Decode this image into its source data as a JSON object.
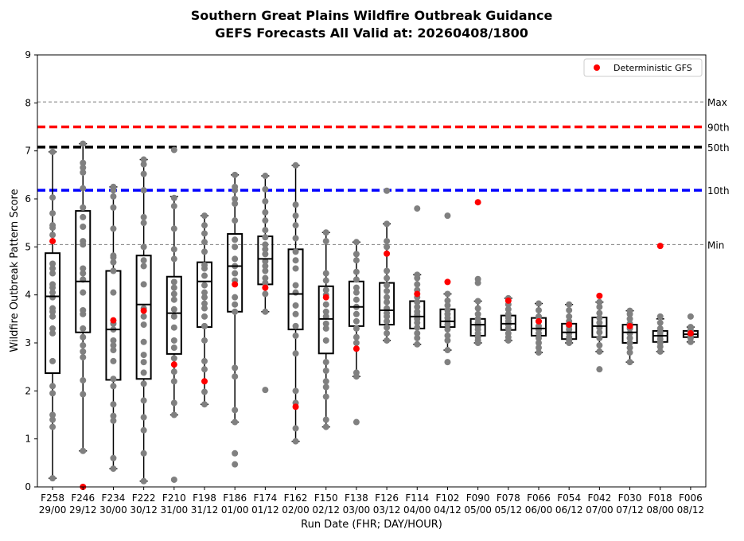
{
  "chart_data": {
    "type": "boxplot",
    "title_line1": "Southern Great Plains Wildfire Outbreak Guidance",
    "title_line2": "GEFS Forecasts All Valid at: 20260408/1800",
    "xlabel": "Run Date (FHR; DAY/HOUR)",
    "ylabel": "Wildfire Outbreak Pattern Score",
    "ylim": [
      0,
      9
    ],
    "yticks": [
      0,
      1,
      2,
      3,
      4,
      5,
      6,
      7,
      8,
      9
    ],
    "legend": {
      "label": "Deterministic GFS",
      "color": "#ff0000",
      "placement": "top-right"
    },
    "reference_lines": [
      {
        "label": "Max",
        "value": 8.02,
        "color": "#808080",
        "style": "dashed-thin"
      },
      {
        "label": "90th",
        "value": 7.5,
        "color": "#ff0000",
        "style": "dashed-thick"
      },
      {
        "label": "50th",
        "value": 7.08,
        "color": "#000000",
        "style": "dashed-thick"
      },
      {
        "label": "10th",
        "value": 6.18,
        "color": "#0000ff",
        "style": "dashed-thick"
      },
      {
        "label": "Min",
        "value": 5.05,
        "color": "#808080",
        "style": "dashed-thin"
      }
    ],
    "runs": [
      {
        "fhr": "F258",
        "date": "29/00",
        "whislo": 0.18,
        "q1": 2.37,
        "med": 3.97,
        "q3": 4.87,
        "whishi": 6.98,
        "gfs": 5.12,
        "members": [
          0.18,
          1.25,
          1.4,
          1.5,
          1.95,
          2.1,
          2.62,
          3.2,
          3.3,
          3.55,
          3.65,
          3.72,
          3.95,
          4.05,
          4.15,
          4.22,
          4.45,
          4.55,
          4.65,
          5.25,
          5.4,
          5.45,
          5.7,
          6.03,
          6.98
        ]
      },
      {
        "fhr": "F246",
        "date": "29/12",
        "whislo": 0.75,
        "q1": 3.22,
        "med": 4.28,
        "q3": 5.75,
        "whishi": 7.15,
        "gfs": 0.0,
        "members": [
          0.75,
          1.93,
          2.22,
          2.7,
          2.82,
          2.95,
          3.12,
          3.3,
          3.6,
          3.68,
          4.05,
          4.32,
          4.45,
          4.55,
          5.05,
          5.12,
          5.42,
          5.62,
          5.82,
          6.22,
          6.55,
          6.65,
          6.75,
          7.15
        ]
      },
      {
        "fhr": "F234",
        "date": "30/00",
        "whislo": 0.38,
        "q1": 2.23,
        "med": 3.28,
        "q3": 4.5,
        "whishi": 6.25,
        "gfs": 3.47,
        "members": [
          0.38,
          0.6,
          1.38,
          1.48,
          1.72,
          2.1,
          2.25,
          2.62,
          2.85,
          2.95,
          3.05,
          3.28,
          3.4,
          4.05,
          4.5,
          4.68,
          4.78,
          4.82,
          5.38,
          5.82,
          6.05,
          6.18,
          6.25
        ]
      },
      {
        "fhr": "F222",
        "date": "30/12",
        "whislo": 0.12,
        "q1": 2.25,
        "med": 3.8,
        "q3": 4.82,
        "whishi": 6.82,
        "gfs": 3.67,
        "members": [
          0.12,
          0.7,
          1.18,
          1.45,
          1.8,
          2.15,
          2.38,
          2.6,
          2.75,
          3.02,
          3.38,
          3.55,
          3.72,
          4.22,
          4.6,
          4.72,
          5.0,
          5.5,
          5.62,
          6.18,
          6.52,
          6.72,
          6.82
        ]
      },
      {
        "fhr": "F210",
        "date": "31/00",
        "whislo": 1.5,
        "q1": 2.77,
        "med": 3.62,
        "q3": 4.38,
        "whishi": 6.05,
        "gfs": 2.55,
        "members": [
          0.15,
          1.5,
          1.75,
          2.2,
          2.4,
          2.68,
          2.9,
          3.05,
          3.32,
          3.55,
          3.7,
          3.9,
          4.02,
          4.15,
          4.27,
          4.75,
          4.95,
          5.38,
          5.85,
          6.02,
          7.02
        ]
      },
      {
        "fhr": "F198",
        "date": "31/12",
        "whislo": 1.72,
        "q1": 3.33,
        "med": 4.28,
        "q3": 4.68,
        "whishi": 5.65,
        "gfs": 2.2,
        "members": [
          1.72,
          1.98,
          2.45,
          2.62,
          3.05,
          3.35,
          3.55,
          3.72,
          3.82,
          3.95,
          4.05,
          4.2,
          4.4,
          4.55,
          4.62,
          4.9,
          5.1,
          5.28,
          5.45,
          5.65
        ]
      },
      {
        "fhr": "F186",
        "date": "01/00",
        "whislo": 1.35,
        "q1": 3.65,
        "med": 4.6,
        "q3": 5.27,
        "whishi": 6.5,
        "gfs": 4.22,
        "members": [
          0.47,
          0.7,
          1.35,
          1.6,
          2.3,
          2.48,
          3.65,
          3.8,
          3.95,
          4.3,
          4.45,
          4.6,
          4.75,
          5.0,
          5.15,
          5.55,
          5.9,
          6.0,
          6.18,
          6.25,
          6.5
        ]
      },
      {
        "fhr": "F174",
        "date": "01/12",
        "whislo": 3.65,
        "q1": 4.22,
        "med": 4.75,
        "q3": 5.22,
        "whishi": 6.48,
        "gfs": 4.15,
        "members": [
          2.02,
          3.65,
          4.02,
          4.25,
          4.35,
          4.5,
          4.6,
          4.7,
          4.85,
          4.95,
          5.05,
          5.2,
          5.35,
          5.55,
          5.72,
          5.95,
          6.2,
          6.48
        ]
      },
      {
        "fhr": "F162",
        "date": "02/00",
        "whislo": 0.95,
        "q1": 3.28,
        "med": 4.02,
        "q3": 4.95,
        "whishi": 6.7,
        "gfs": 1.67,
        "members": [
          0.95,
          1.22,
          1.75,
          2.0,
          2.78,
          3.15,
          3.35,
          3.6,
          3.78,
          4.05,
          4.2,
          4.55,
          4.72,
          4.9,
          5.18,
          5.45,
          5.65,
          5.88,
          6.7
        ]
      },
      {
        "fhr": "F150",
        "date": "02/12",
        "whislo": 1.25,
        "q1": 2.78,
        "med": 3.5,
        "q3": 4.18,
        "whishi": 5.3,
        "gfs": 3.95,
        "members": [
          1.25,
          1.4,
          1.88,
          2.08,
          2.2,
          2.42,
          2.6,
          3.05,
          3.3,
          3.4,
          3.55,
          3.65,
          3.8,
          4.0,
          4.1,
          4.3,
          4.45,
          5.12,
          5.3
        ]
      },
      {
        "fhr": "F138",
        "date": "03/00",
        "whislo": 2.3,
        "q1": 3.35,
        "med": 3.75,
        "q3": 4.28,
        "whishi": 5.1,
        "gfs": 2.88,
        "members": [
          1.35,
          2.3,
          2.38,
          3.0,
          3.12,
          3.3,
          3.45,
          3.6,
          3.75,
          3.9,
          4.05,
          4.15,
          4.32,
          4.48,
          4.72,
          4.85,
          5.1
        ]
      },
      {
        "fhr": "F126",
        "date": "03/12",
        "whislo": 3.05,
        "q1": 3.38,
        "med": 3.68,
        "q3": 4.25,
        "whishi": 5.48,
        "gfs": 4.86,
        "members": [
          3.05,
          3.2,
          3.32,
          3.45,
          3.55,
          3.62,
          3.72,
          3.85,
          3.95,
          4.08,
          4.2,
          4.35,
          4.5,
          5.0,
          5.12,
          5.48,
          6.17
        ]
      },
      {
        "fhr": "F114",
        "date": "04/00",
        "whislo": 2.97,
        "q1": 3.3,
        "med": 3.55,
        "q3": 3.87,
        "whishi": 4.42,
        "gfs": 4.02,
        "members": [
          2.97,
          3.1,
          3.2,
          3.32,
          3.42,
          3.5,
          3.58,
          3.65,
          3.75,
          3.85,
          3.95,
          4.1,
          4.22,
          4.35,
          4.42,
          5.8
        ]
      },
      {
        "fhr": "F102",
        "date": "04/12",
        "whislo": 2.85,
        "q1": 3.33,
        "med": 3.45,
        "q3": 3.7,
        "whishi": 4.02,
        "gfs": 4.27,
        "members": [
          2.6,
          2.85,
          3.05,
          3.15,
          3.28,
          3.38,
          3.45,
          3.52,
          3.6,
          3.68,
          3.78,
          3.88,
          4.02,
          5.65
        ]
      },
      {
        "fhr": "F090",
        "date": "05/00",
        "whislo": 3.0,
        "q1": 3.15,
        "med": 3.38,
        "q3": 3.5,
        "whishi": 3.87,
        "gfs": 5.93,
        "members": [
          3.0,
          3.05,
          3.12,
          3.2,
          3.28,
          3.35,
          3.42,
          3.5,
          3.6,
          3.72,
          3.87,
          4.25,
          4.33
        ]
      },
      {
        "fhr": "F078",
        "date": "05/12",
        "whislo": 3.05,
        "q1": 3.27,
        "med": 3.4,
        "q3": 3.57,
        "whishi": 3.93,
        "gfs": 3.88,
        "members": [
          3.05,
          3.12,
          3.2,
          3.3,
          3.38,
          3.45,
          3.52,
          3.6,
          3.7,
          3.8,
          3.93
        ]
      },
      {
        "fhr": "F066",
        "date": "06/00",
        "whislo": 2.8,
        "q1": 3.15,
        "med": 3.3,
        "q3": 3.52,
        "whishi": 3.82,
        "gfs": 3.45,
        "members": [
          2.8,
          2.9,
          3.0,
          3.1,
          3.2,
          3.28,
          3.35,
          3.45,
          3.55,
          3.68,
          3.82
        ]
      },
      {
        "fhr": "F054",
        "date": "06/12",
        "whislo": 3.0,
        "q1": 3.08,
        "med": 3.22,
        "q3": 3.4,
        "whishi": 3.8,
        "gfs": 3.38,
        "members": [
          3.0,
          3.05,
          3.12,
          3.2,
          3.28,
          3.35,
          3.45,
          3.55,
          3.68,
          3.8
        ]
      },
      {
        "fhr": "F042",
        "date": "07/00",
        "whislo": 2.82,
        "q1": 3.12,
        "med": 3.35,
        "q3": 3.53,
        "whishi": 3.85,
        "gfs": 3.98,
        "members": [
          2.45,
          2.82,
          2.95,
          3.1,
          3.22,
          3.32,
          3.42,
          3.52,
          3.62,
          3.75,
          3.85
        ]
      },
      {
        "fhr": "F030",
        "date": "07/12",
        "whislo": 2.6,
        "q1": 3.0,
        "med": 3.22,
        "q3": 3.38,
        "whishi": 3.67,
        "gfs": 3.35,
        "members": [
          2.6,
          2.8,
          2.9,
          3.0,
          3.1,
          3.2,
          3.3,
          3.4,
          3.5,
          3.6,
          3.67
        ]
      },
      {
        "fhr": "F018",
        "date": "08/00",
        "whislo": 2.82,
        "q1": 3.02,
        "med": 3.15,
        "q3": 3.25,
        "whishi": 3.5,
        "gfs": 5.02,
        "members": [
          2.82,
          2.92,
          3.0,
          3.08,
          3.15,
          3.22,
          3.3,
          3.42,
          3.55
        ]
      },
      {
        "fhr": "F006",
        "date": "08/12",
        "whislo": 3.02,
        "q1": 3.12,
        "med": 3.18,
        "q3": 3.25,
        "whishi": 3.33,
        "gfs": 3.2,
        "members": [
          3.02,
          3.1,
          3.15,
          3.2,
          3.25,
          3.3,
          3.33,
          3.55
        ]
      }
    ]
  }
}
